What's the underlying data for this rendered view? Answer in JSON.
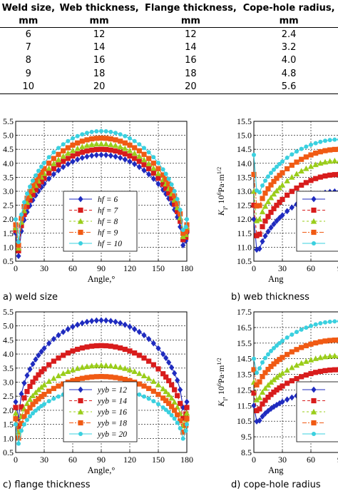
{
  "table": {
    "headers": [
      [
        "Weld size,",
        "mm"
      ],
      [
        "Web thickness,",
        "mm"
      ],
      [
        "Flange thickness,",
        "mm"
      ],
      [
        "Cope-hole radius,",
        "mm"
      ]
    ],
    "rows": [
      [
        "6",
        "12",
        "12",
        "2.4"
      ],
      [
        "7",
        "14",
        "14",
        "3.2"
      ],
      [
        "8",
        "16",
        "16",
        "4.0"
      ],
      [
        "9",
        "18",
        "18",
        "4.8"
      ],
      [
        "10",
        "20",
        "20",
        "5.6"
      ]
    ]
  },
  "captions": {
    "a": "a) weld size",
    "b": "b) web thickness",
    "c": "c) flange thickness",
    "d": "d) cope-hole radius"
  },
  "colors": {
    "s1": "#1f2bbf",
    "s2": "#d81c1c",
    "s3": "#9acd1a",
    "s4": "#f05a14",
    "s5": "#3ad0df"
  },
  "chart_data": [
    {
      "id": "a",
      "type": "line",
      "xlabel": "Angle,°",
      "xlim": [
        0,
        180
      ],
      "xticks": [
        "0",
        "30",
        "60",
        "90",
        "120",
        "150",
        "180"
      ],
      "ylim": [
        10.5,
        15.5
      ],
      "yticks": [
        "0.5",
        "1.0",
        "1.5",
        "2.0",
        "2.5",
        "3.0",
        "3.5",
        "4.0",
        "4.5",
        "5.0",
        "5.5"
      ],
      "legend": "bottom-center",
      "grid": true,
      "series": [
        {
          "name": "hf = 6",
          "start": 11.5,
          "min": 10.55,
          "peak": 14.3,
          "end": 11.5
        },
        {
          "name": "hf = 7",
          "start": 11.6,
          "min": 10.75,
          "peak": 14.5,
          "end": 11.6
        },
        {
          "name": "hf = 8",
          "start": 11.7,
          "min": 10.85,
          "peak": 14.7,
          "end": 11.7
        },
        {
          "name": "hf = 9",
          "start": 11.8,
          "min": 10.95,
          "peak": 14.9,
          "end": 11.8
        },
        {
          "name": "hf = 10",
          "start": 12.0,
          "min": 11.05,
          "peak": 15.15,
          "end": 12.0
        }
      ]
    },
    {
      "id": "b",
      "type": "line",
      "ylabel": "K_I, 10^6Pa·m^1/2",
      "xlabel": "Ang",
      "xlim": [
        0,
        180
      ],
      "xticks": [
        "0",
        "30",
        "60",
        "9"
      ],
      "ylim": [
        10.5,
        15.5
      ],
      "yticks": [
        "10.5",
        "11.0",
        "11.5",
        "12.0",
        "12.5",
        "13.0",
        "13.5",
        "14.0",
        "14.5",
        "15.0",
        "15.5"
      ],
      "legend": "right",
      "grid": true,
      "series": [
        {
          "start": 12.0,
          "min": 10.55,
          "plateau": 13.0
        },
        {
          "start": 12.5,
          "min": 11.05,
          "plateau": 13.6
        },
        {
          "start": 13.0,
          "min": 11.6,
          "plateau": 14.1
        },
        {
          "start": 13.6,
          "min": 12.1,
          "plateau": 14.5
        },
        {
          "start": 14.3,
          "min": 12.6,
          "plateau": 14.85
        }
      ]
    },
    {
      "id": "c",
      "type": "line",
      "xlabel": "Angle,°",
      "xlim": [
        0,
        180
      ],
      "xticks": [
        "0",
        "30",
        "60",
        "90",
        "120",
        "150",
        "180"
      ],
      "ylim": [
        10.5,
        15.5
      ],
      "yticks": [
        "0.5",
        "1.0",
        "1.5",
        "2.0",
        "2.5",
        "3.0",
        "3.5",
        "4.0",
        "4.5",
        "5.0",
        "5.5"
      ],
      "legend": "bottom-center",
      "grid": true,
      "series": [
        {
          "name": "yyb = 12",
          "start": 12.3,
          "min": 11.6,
          "peak": 15.2,
          "end": 12.3
        },
        {
          "name": "yyb = 14",
          "start": 12.1,
          "min": 11.3,
          "peak": 14.3,
          "end": 12.1
        },
        {
          "name": "yyb = 16",
          "start": 11.9,
          "min": 11.1,
          "peak": 13.6,
          "end": 11.9
        },
        {
          "name": "yyb = 18",
          "start": 11.7,
          "min": 10.9,
          "peak": 13.2,
          "end": 11.7
        },
        {
          "name": "yyb = 20",
          "start": 11.5,
          "min": 10.7,
          "peak": 12.8,
          "end": 11.5
        }
      ]
    },
    {
      "id": "d",
      "type": "line",
      "ylabel": "K_I, 10^6Pa·m^1/2",
      "xlabel": "Ang",
      "xlim": [
        0,
        180
      ],
      "xticks": [
        "0",
        "30",
        "60",
        "9"
      ],
      "ylim": [
        8.5,
        17.5
      ],
      "yticks": [
        "8.5",
        "9.5",
        "10.5",
        "11.5",
        "12.5",
        "13.5",
        "14.5",
        "15.5",
        "16.5",
        "17.5"
      ],
      "legend": "right",
      "grid": true,
      "series": [
        {
          "start": 11.5,
          "min": 10.15,
          "plateau": 12.6
        },
        {
          "start": 12.3,
          "min": 10.8,
          "plateau": 13.8
        },
        {
          "start": 13.0,
          "min": 11.5,
          "plateau": 14.7
        },
        {
          "start": 13.8,
          "min": 12.5,
          "plateau": 15.7
        },
        {
          "start": 14.5,
          "min": 13.3,
          "plateau": 16.9
        }
      ]
    }
  ]
}
